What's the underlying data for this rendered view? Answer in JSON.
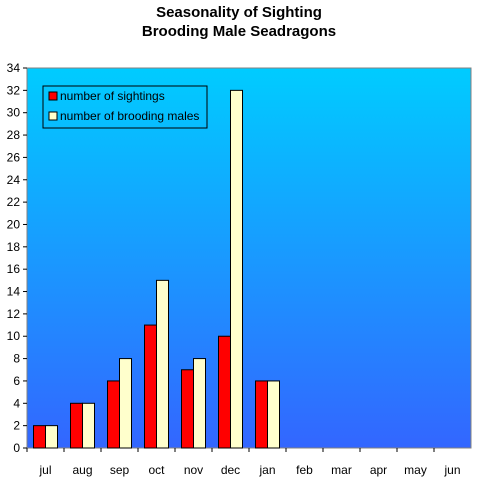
{
  "chart_data": {
    "type": "bar",
    "title_lines": [
      "Seasonality of Sighting",
      "Brooding Male Seadragons"
    ],
    "xlabel": "",
    "ylabel": "",
    "categories": [
      "jul",
      "aug",
      "sep",
      "oct",
      "nov",
      "dec",
      "jan",
      "feb",
      "mar",
      "apr",
      "may",
      "jun"
    ],
    "series": [
      {
        "name": "number of sightings",
        "color": "#ff0000",
        "values": [
          2,
          4,
          6,
          11,
          7,
          10,
          6,
          0,
          0,
          0,
          0,
          0
        ]
      },
      {
        "name": "number of brooding males",
        "color": "#ffffcc",
        "values": [
          2,
          4,
          8,
          15,
          8,
          32,
          6,
          0,
          0,
          0,
          0,
          0
        ]
      }
    ],
    "ylim": [
      0,
      34
    ],
    "yticks": [
      0,
      2,
      4,
      6,
      8,
      10,
      12,
      14,
      16,
      18,
      20,
      22,
      24,
      26,
      28,
      30,
      32,
      34
    ],
    "legend_position": "top-left",
    "grid": false,
    "plot_background": {
      "top": "#00ccff",
      "bottom": "#3366ff"
    }
  }
}
